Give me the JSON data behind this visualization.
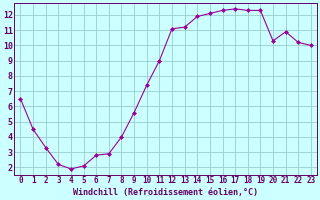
{
  "x": [
    0,
    1,
    2,
    3,
    4,
    5,
    6,
    7,
    8,
    9,
    10,
    11,
    12,
    13,
    14,
    15,
    16,
    17,
    18,
    19,
    20,
    21,
    22,
    23
  ],
  "y": [
    6.5,
    4.5,
    3.3,
    2.2,
    1.9,
    2.1,
    2.8,
    2.9,
    4.0,
    5.6,
    7.4,
    9.0,
    11.1,
    11.2,
    11.9,
    12.1,
    12.3,
    12.4,
    12.3,
    12.3,
    10.3,
    10.9,
    10.2,
    10.0
  ],
  "line_color": "#990099",
  "marker": "D",
  "marker_size": 2.0,
  "bg_color": "#ccffff",
  "grid_color": "#99cccc",
  "xlabel": "Windchill (Refroidissement éolien,°C)",
  "xlabel_color": "#660066",
  "xlim": [
    -0.5,
    23.5
  ],
  "ylim": [
    1.5,
    12.8
  ],
  "yticks": [
    2,
    3,
    4,
    5,
    6,
    7,
    8,
    9,
    10,
    11,
    12
  ],
  "xticks": [
    0,
    1,
    2,
    3,
    4,
    5,
    6,
    7,
    8,
    9,
    10,
    11,
    12,
    13,
    14,
    15,
    16,
    17,
    18,
    19,
    20,
    21,
    22,
    23
  ],
  "tick_color": "#660066",
  "spine_color": "#660066",
  "tick_fontsize": 5.5,
  "xlabel_fontsize": 6.0,
  "axis_line_color": "#660066"
}
